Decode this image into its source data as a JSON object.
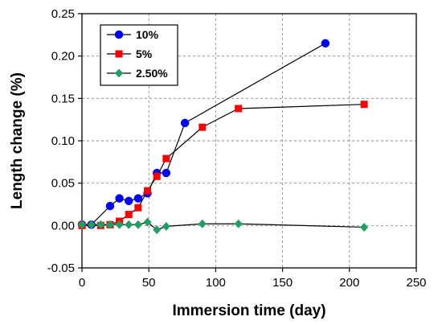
{
  "chart_data": {
    "type": "line",
    "title": "",
    "xlabel": "Immersion time (day)",
    "ylabel": "Length change (%)",
    "xlim": [
      0,
      250
    ],
    "ylim": [
      -0.05,
      0.25
    ],
    "xticks": [
      0,
      50,
      100,
      150,
      200,
      250
    ],
    "yticks": [
      -0.05,
      0.0,
      0.05,
      0.1,
      0.15,
      0.2,
      0.25
    ],
    "ytick_labels": [
      "-0.05",
      "0.00",
      "0.05",
      "0.10",
      "0.15",
      "0.20",
      "0.25"
    ],
    "xtick_labels": [
      "0",
      "50",
      "100",
      "150",
      "200",
      "250"
    ],
    "grid": true,
    "legend_position": "top-left",
    "series": [
      {
        "name": "10%",
        "color": "#0000ff",
        "marker": "circle",
        "x": [
          0,
          7,
          21,
          28,
          35,
          42,
          49,
          56,
          63,
          77,
          182
        ],
        "y": [
          0.001,
          0.001,
          0.023,
          0.032,
          0.029,
          0.032,
          0.038,
          0.062,
          0.062,
          0.121,
          0.215
        ]
      },
      {
        "name": "5%",
        "color": "#ff0000",
        "marker": "square",
        "x": [
          0,
          14,
          21,
          28,
          35,
          42,
          49,
          56,
          63,
          90,
          117,
          211
        ],
        "y": [
          0.0,
          0.0,
          0.001,
          0.005,
          0.013,
          0.021,
          0.041,
          0.058,
          0.079,
          0.116,
          0.138,
          0.143
        ]
      },
      {
        "name": "2.50%",
        "color": "#20a060",
        "marker": "diamond",
        "x": [
          0,
          7,
          14,
          21,
          28,
          35,
          42,
          49,
          56,
          63,
          90,
          117,
          211
        ],
        "y": [
          0.001,
          0.001,
          0.001,
          0.001,
          0.001,
          0.001,
          0.001,
          0.004,
          -0.005,
          -0.001,
          0.002,
          0.002,
          -0.002
        ]
      }
    ]
  }
}
